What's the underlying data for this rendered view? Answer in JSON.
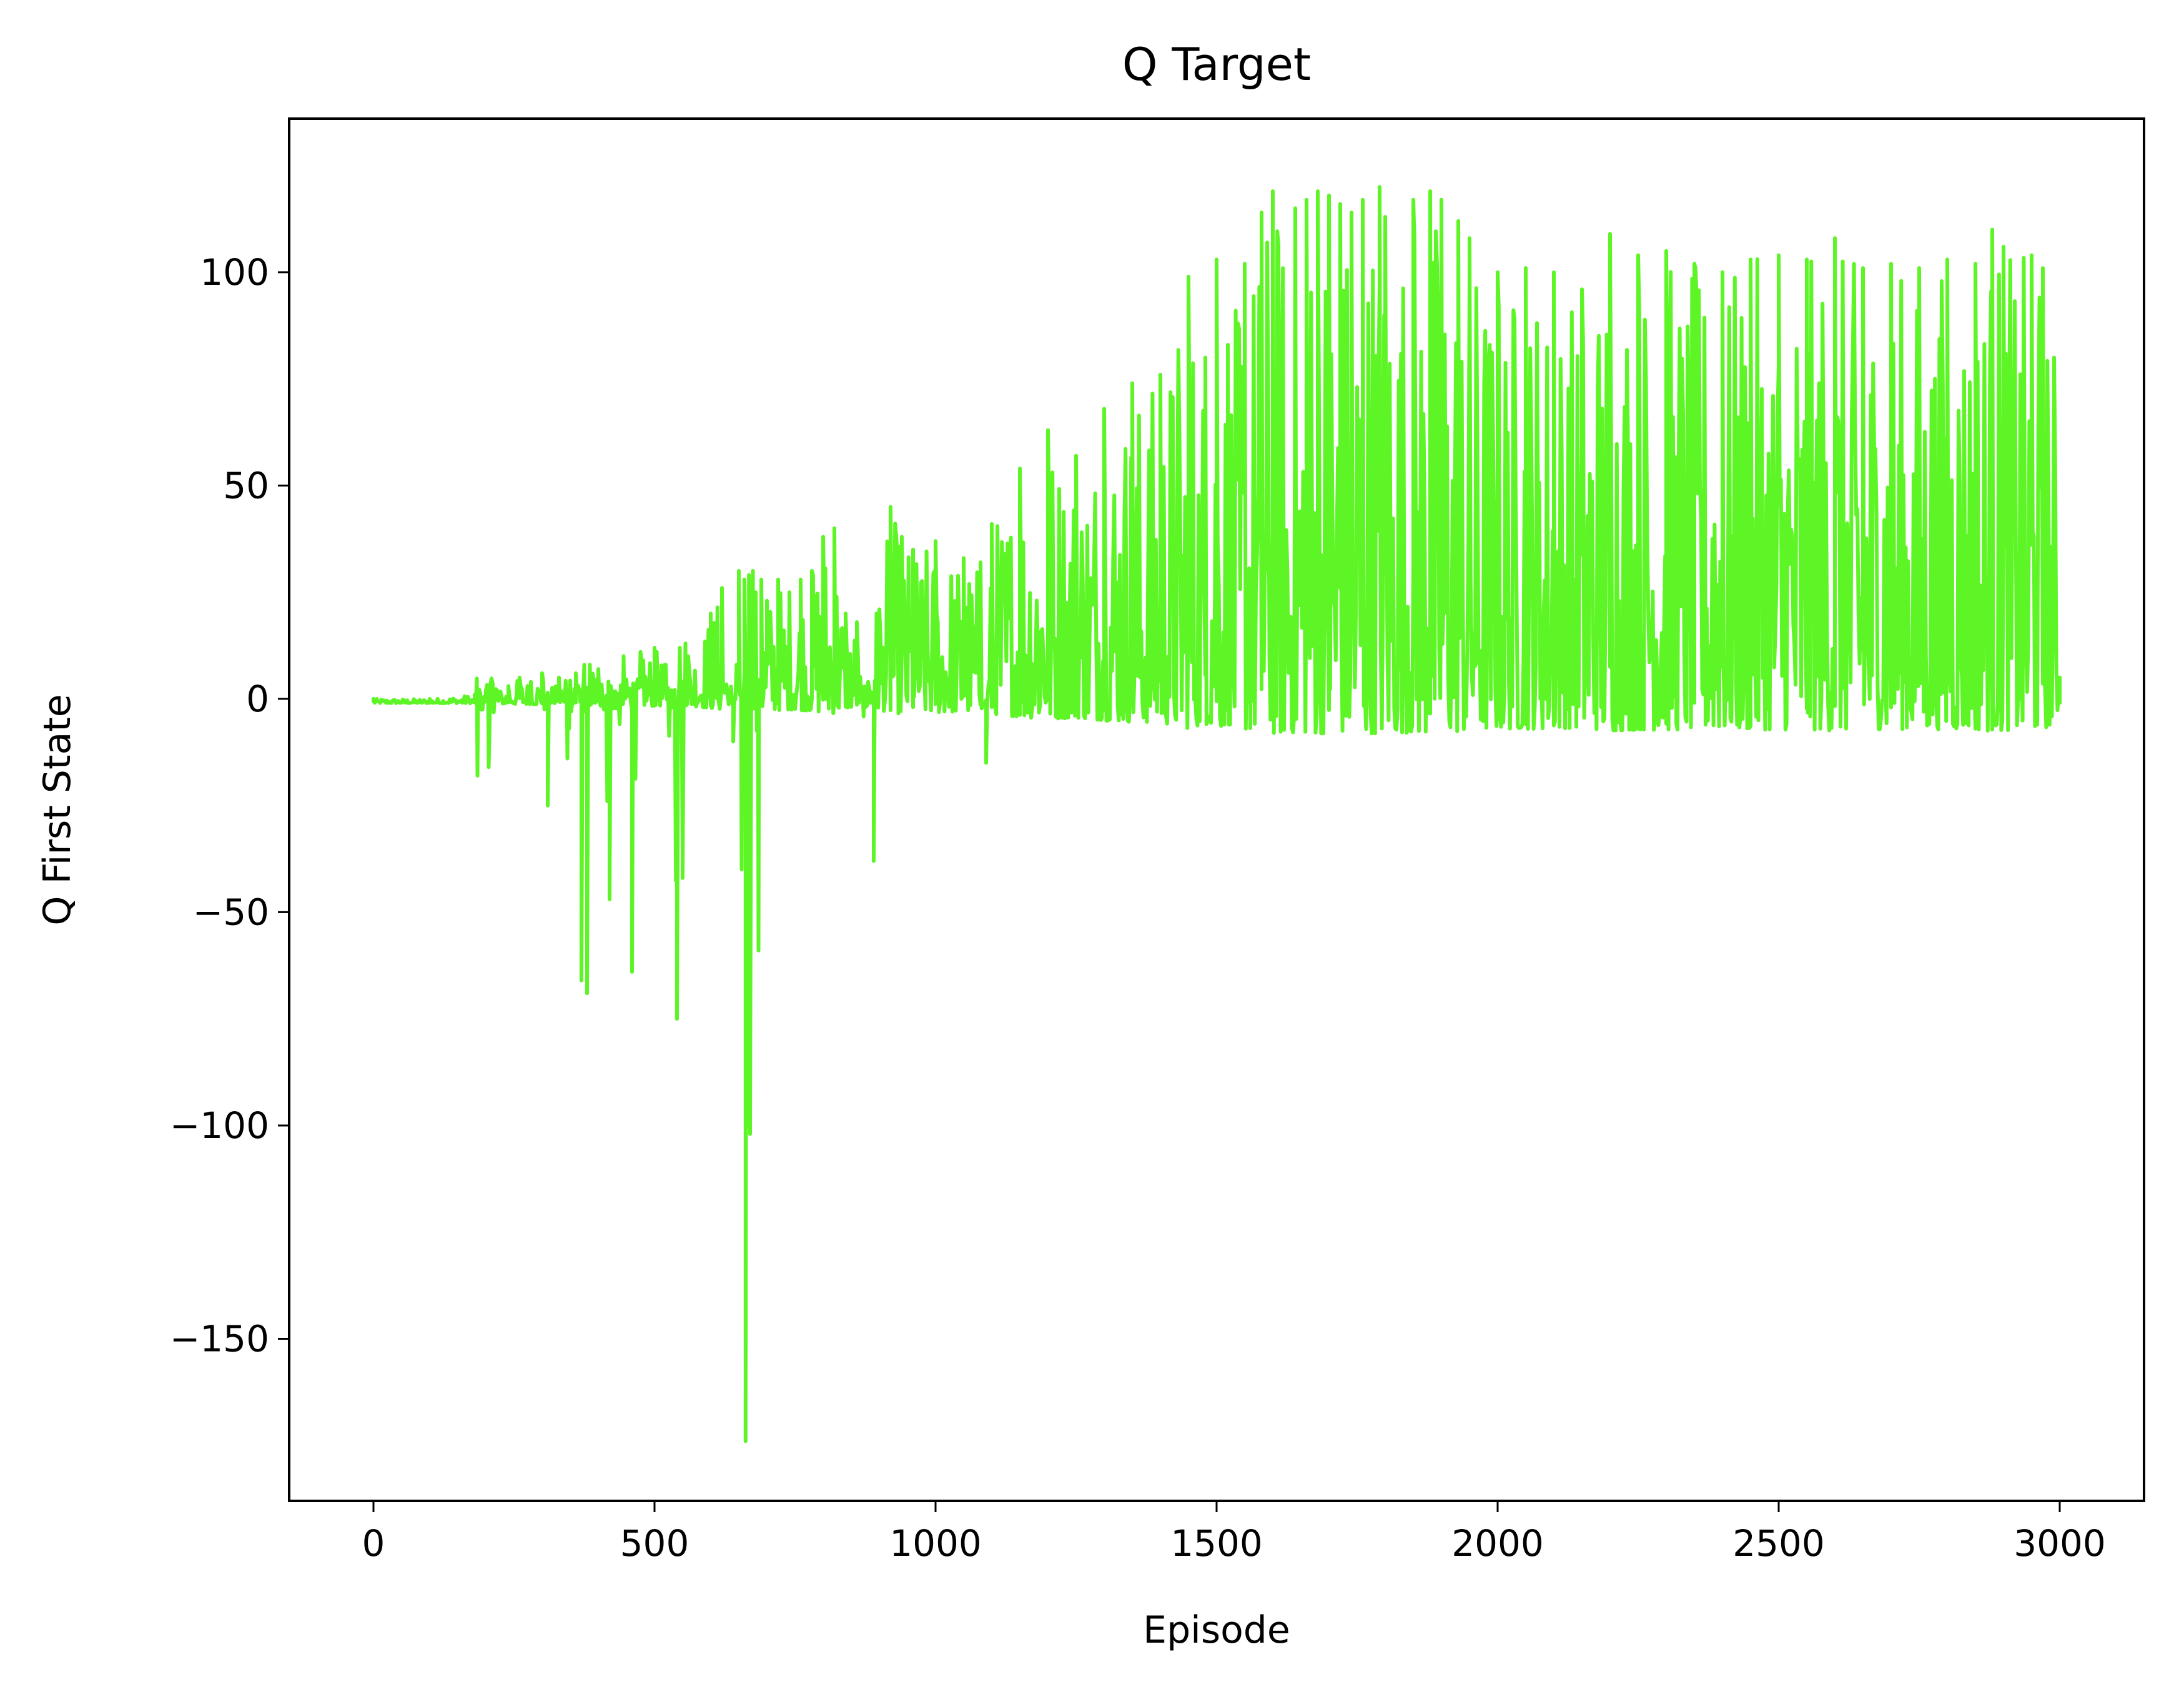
{
  "chart_data": {
    "type": "line",
    "title": "Q Target",
    "xlabel": "Episode",
    "ylabel": "Q First State",
    "xlim": [
      -150,
      3150
    ],
    "ylim": [
      -188,
      136
    ],
    "xticks": [
      0,
      500,
      1000,
      1500,
      2000,
      2500,
      3000
    ],
    "yticks": [
      -150,
      -100,
      -50,
      0,
      50,
      100
    ],
    "xtick_labels": [
      "0",
      "500",
      "1000",
      "1500",
      "2000",
      "2500",
      "3000"
    ],
    "ytick_labels": [
      "−150",
      "−100",
      "−50",
      "0",
      "50",
      "100"
    ],
    "grid": false,
    "legend": "none",
    "series": [
      {
        "color": "#5ef526",
        "x": [
          0,
          100,
          180,
          185,
          200,
          205,
          220,
          240,
          260,
          280,
          300,
          310,
          330,
          345,
          360,
          370,
          375,
          380,
          385,
          400,
          420,
          445,
          460,
          475,
          480,
          500,
          520,
          540,
          545,
          550,
          555,
          560,
          600,
          620,
          640,
          650,
          655,
          660,
          662,
          665,
          668,
          670,
          675,
          680,
          685,
          690,
          700,
          720,
          740,
          760,
          780,
          800,
          820,
          840,
          860,
          890,
          895,
          900,
          920,
          940,
          960,
          1000,
          1050,
          1080,
          1090,
          1100,
          1150,
          1200,
          1250,
          1300,
          1350,
          1400,
          1450,
          1480,
          1500,
          1520,
          1550,
          1580,
          1600,
          1640,
          1660,
          1680,
          1700,
          1720,
          1740,
          1760,
          1790,
          1800,
          1850,
          1880,
          1900,
          1930,
          1950,
          2000,
          2050,
          2100,
          2150,
          2200,
          2250,
          2300,
          2350,
          2400,
          2450,
          2500,
          2550,
          2600,
          2650,
          2700,
          2750,
          2800,
          2850,
          2880,
          2900,
          2950,
          2970,
          2990,
          3000
        ],
        "y": [
          0,
          0,
          1,
          -18,
          2,
          -16,
          2,
          3,
          5,
          4,
          6,
          -25,
          5,
          -14,
          6,
          -66,
          8,
          -69,
          8,
          7,
          -47,
          10,
          -64,
          11,
          9,
          12,
          8,
          -75,
          12,
          -42,
          13,
          10,
          20,
          26,
          -10,
          30,
          -40,
          28,
          -174,
          -100,
          29,
          -102,
          30,
          25,
          -59,
          28,
          23,
          28,
          25,
          28,
          30,
          38,
          40,
          20,
          18,
          -38,
          20,
          21,
          45,
          38,
          35,
          37,
          33,
          32,
          -15,
          41,
          54,
          63,
          57,
          68,
          74,
          76,
          99,
          80,
          103,
          83,
          102,
          114,
          119,
          115,
          117,
          119,
          118,
          116,
          114,
          117,
          120,
          113,
          117,
          119,
          117,
          112,
          108,
          100,
          101,
          100,
          96,
          109,
          104,
          105,
          102,
          100,
          103,
          104,
          103,
          108,
          101,
          102,
          101,
          103,
          102,
          110,
          106,
          104,
          101,
          80,
          5
        ]
      }
    ]
  }
}
